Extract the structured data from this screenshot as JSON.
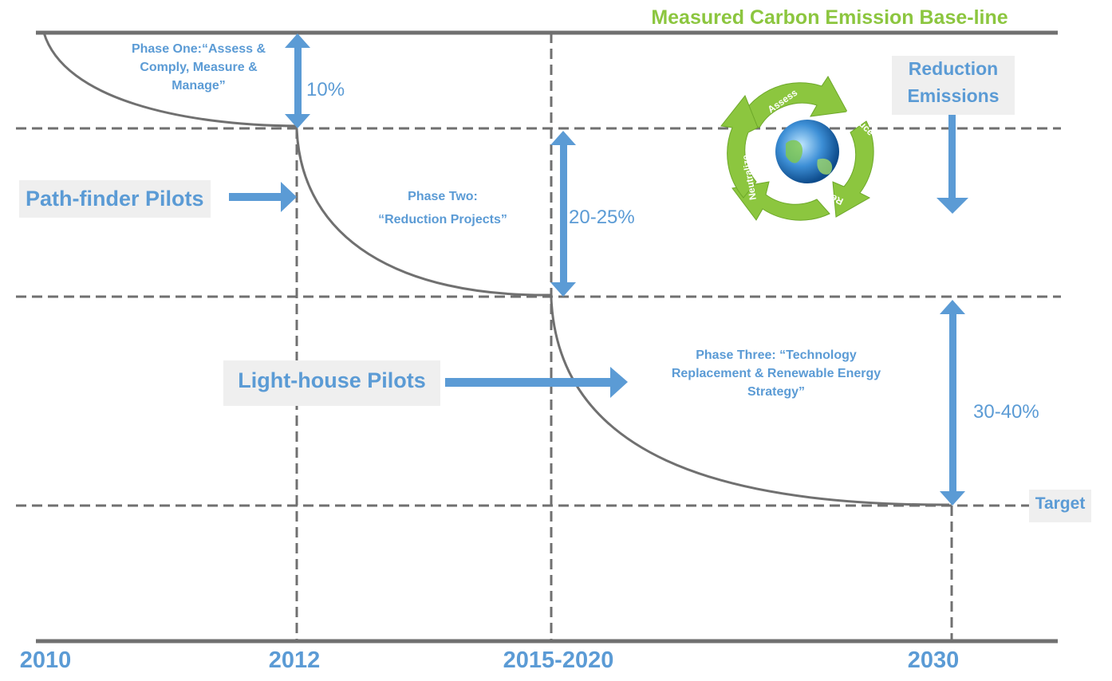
{
  "title": "Measured Carbon Emission Base-line",
  "phases": {
    "one": "Phase One:“Assess & Comply, Measure & Manage”",
    "two_line1": "Phase Two:",
    "two_line2": "“Reduction Projects”",
    "three": "Phase Three: “Technology Replacement & Renewable Energy Strategy”"
  },
  "percentages": {
    "phase_one": "10%",
    "phase_two": "20-25%",
    "phase_three": "30-40%"
  },
  "pilots": {
    "pathfinder": "Path-finder Pilots",
    "lighthouse": "Light-house Pilots"
  },
  "reduction_line1": "Reduction",
  "reduction_line2": "Emissions",
  "target": "Target",
  "cycle_labels": [
    "Assess",
    "Reduce",
    "Replace",
    "Neutralize"
  ],
  "years": [
    "2010",
    "2012",
    "2015-2020",
    "2030"
  ],
  "colors": {
    "accent_blue": "#5b9bd5",
    "title_green": "#8cc63f",
    "line_gray": "#707070"
  }
}
